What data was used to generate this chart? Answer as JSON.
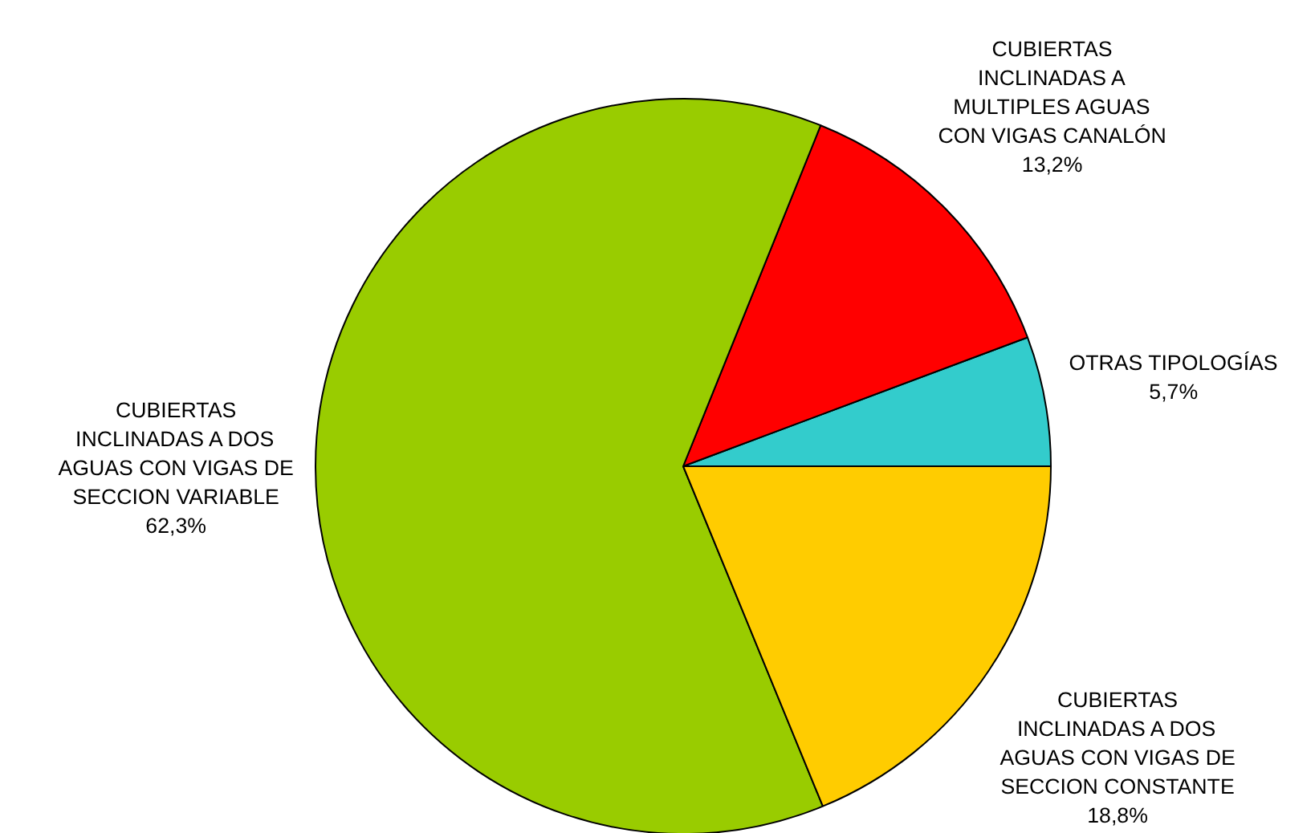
{
  "chart_data": {
    "type": "pie",
    "categories": [
      "OTRAS TIPOLOGÍAS",
      "CUBIERTAS INCLINADAS A MULTIPLES AGUAS CON VIGAS CANALÓN",
      "CUBIERTAS INCLINADAS A DOS AGUAS CON VIGAS DE SECCION VARIABLE",
      "CUBIERTAS INCLINADAS A DOS AGUAS CON VIGAS DE SECCION CONSTANTE"
    ],
    "values": [
      5.7,
      13.2,
      62.3,
      18.8
    ],
    "colors": [
      "#33cccc",
      "#ff0000",
      "#99cc00",
      "#ffcc00"
    ],
    "value_labels": [
      "5,7%",
      "13,2%",
      "62,3%",
      "18,8%"
    ],
    "legend": false
  }
}
